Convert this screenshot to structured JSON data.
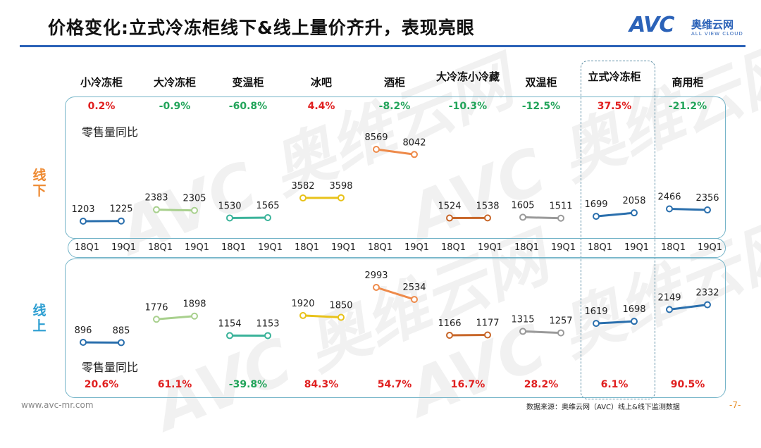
{
  "title": "价格变化:立式冷冻柜线下&线上量价齐升，表现亮眼",
  "logo": {
    "mark": "AVC",
    "name_cn": "奥维云网",
    "name_en": "ALL VIEW CLOUD"
  },
  "watermark": "AVC 奥维云网",
  "side_labels": {
    "offline": "线下",
    "online": "线上"
  },
  "metric_label": "零售量同比",
  "footer": {
    "left": "www.avc-mr.com",
    "source": "数据来源：奥维云网（AVC）线上&线下监测数据",
    "page": "-7-"
  },
  "colors": {
    "positive": "#e02020",
    "negative": "#22a45a",
    "series": [
      "#2a6fad",
      "#a8d08d",
      "#3bb39a",
      "#e8c21a",
      "#ee8a4a",
      "#c8672a",
      "#9a9a9a",
      "#2a6fad",
      "#2a6fad"
    ]
  },
  "chart_data": {
    "type": "line",
    "x": [
      "18Q1",
      "19Q1"
    ],
    "categories": [
      "小冷冻柜",
      "大冷冻柜",
      "变温柜",
      "冰吧",
      "酒柜",
      "大冷冻小冷藏",
      "双温柜",
      "立式冷冻柜",
      "商用柜"
    ],
    "highlight": "立式冷冻柜",
    "offline": {
      "yoy": [
        "0.2%",
        "-0.9%",
        "-60.8%",
        "4.4%",
        "-8.2%",
        "-10.3%",
        "-12.5%",
        "37.5%",
        "-21.2%"
      ],
      "series": [
        {
          "values": [
            1203,
            1225
          ]
        },
        {
          "values": [
            2383,
            2305
          ]
        },
        {
          "values": [
            1530,
            1565
          ]
        },
        {
          "values": [
            3582,
            3598
          ]
        },
        {
          "values": [
            8569,
            8042
          ]
        },
        {
          "values": [
            1524,
            1538
          ]
        },
        {
          "values": [
            1605,
            1511
          ]
        },
        {
          "values": [
            1699,
            2058
          ]
        },
        {
          "values": [
            2466,
            2356
          ]
        }
      ]
    },
    "online": {
      "yoy": [
        "20.6%",
        "61.1%",
        "-39.8%",
        "84.3%",
        "54.7%",
        "16.7%",
        "28.2%",
        "6.1%",
        "90.5%"
      ],
      "series": [
        {
          "values": [
            896,
            885
          ]
        },
        {
          "values": [
            1776,
            1898
          ]
        },
        {
          "values": [
            1154,
            1153
          ]
        },
        {
          "values": [
            1920,
            1850
          ]
        },
        {
          "values": [
            2993,
            2534
          ]
        },
        {
          "values": [
            1166,
            1177
          ]
        },
        {
          "values": [
            1315,
            1257
          ]
        },
        {
          "values": [
            1619,
            1698
          ]
        },
        {
          "values": [
            2149,
            2332
          ]
        }
      ]
    }
  }
}
